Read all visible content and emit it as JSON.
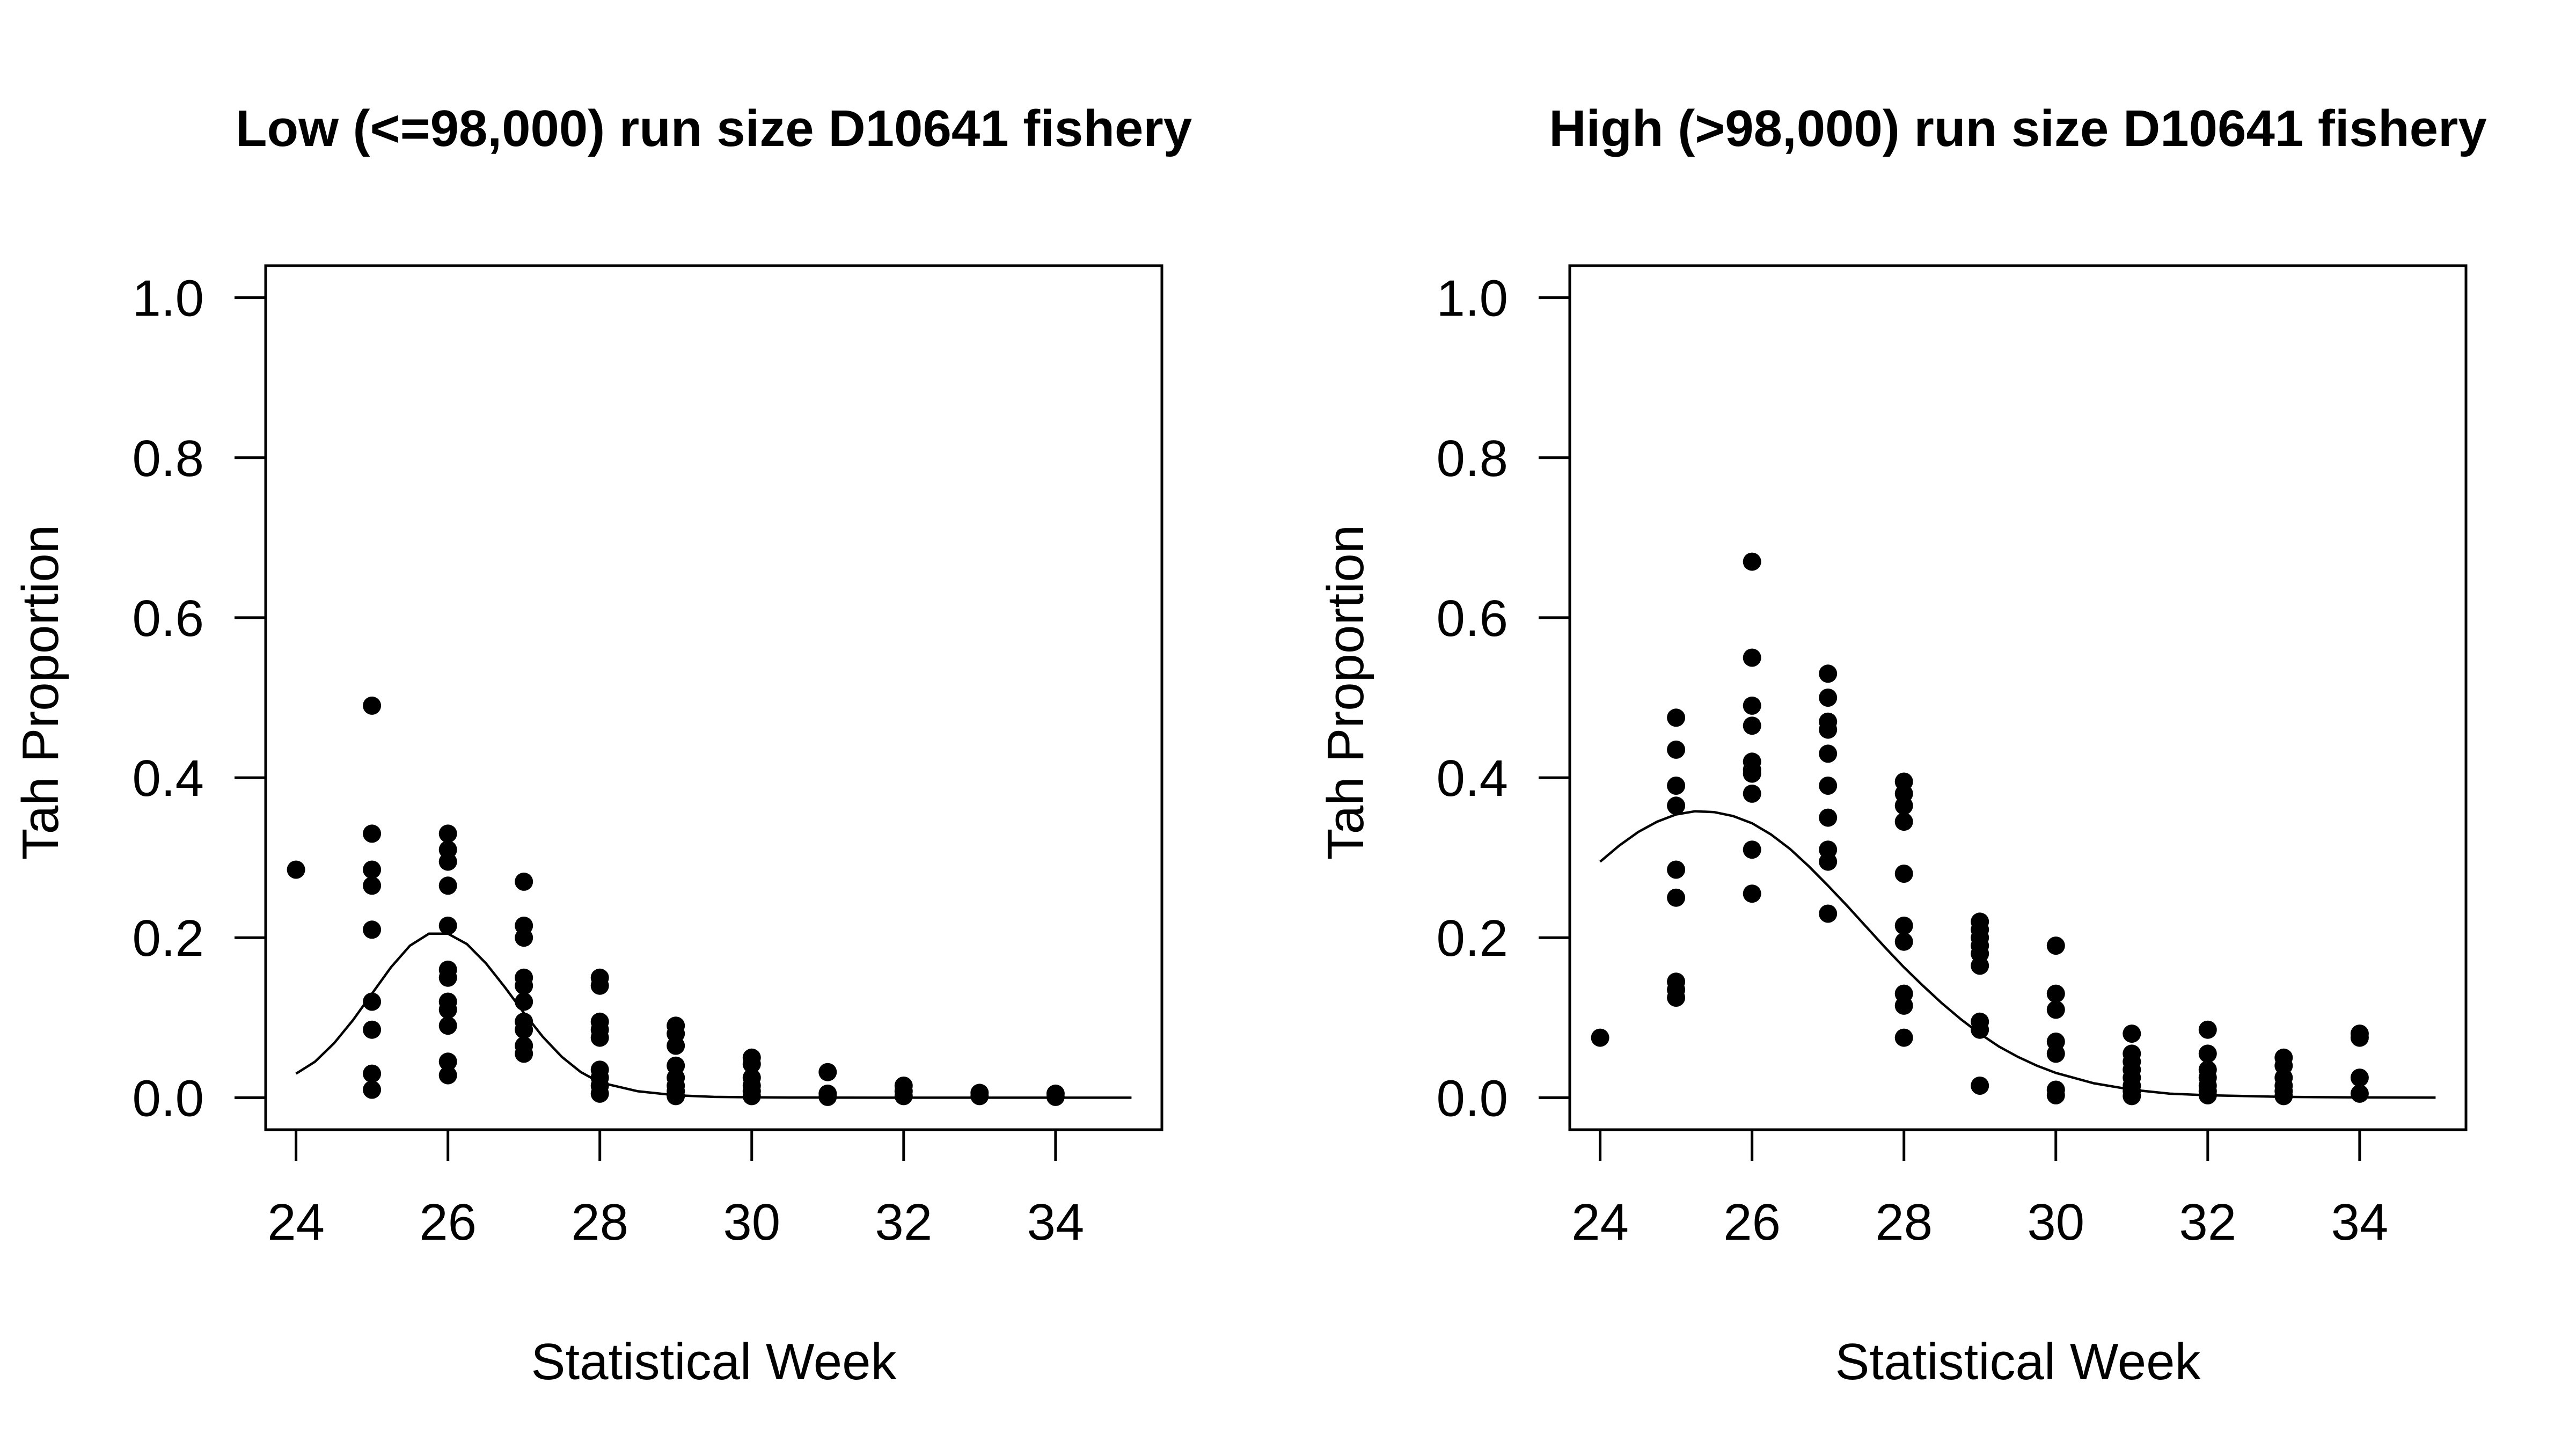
{
  "chart_data": [
    {
      "type": "scatter",
      "title": "Low (<=98,000) run size D10641 fishery",
      "xlabel": "Statistical Week",
      "ylabel": "Tah Proportion",
      "xlim": [
        23.6,
        35.4
      ],
      "ylim": [
        -0.04,
        1.04
      ],
      "xticks": [
        24,
        26,
        28,
        30,
        32,
        34
      ],
      "xtick_labels": [
        "24",
        "26",
        "28",
        "30",
        "32",
        "34"
      ],
      "yticks": [
        0.0,
        0.2,
        0.4,
        0.6,
        0.8,
        1.0
      ],
      "ytick_labels": [
        "0.0",
        "0.2",
        "0.4",
        "0.6",
        "0.8",
        "1.0"
      ],
      "grid": false,
      "series": [
        {
          "type": "scatter",
          "points": [
            [
              24,
              0.285
            ],
            [
              25,
              0.49
            ],
            [
              25,
              0.33
            ],
            [
              25,
              0.285
            ],
            [
              25,
              0.265
            ],
            [
              25,
              0.21
            ],
            [
              25,
              0.12
            ],
            [
              25,
              0.085
            ],
            [
              25,
              0.03
            ],
            [
              25,
              0.01
            ],
            [
              26,
              0.33
            ],
            [
              26,
              0.31
            ],
            [
              26,
              0.295
            ],
            [
              26,
              0.265
            ],
            [
              26,
              0.215
            ],
            [
              26,
              0.16
            ],
            [
              26,
              0.15
            ],
            [
              26,
              0.12
            ],
            [
              26,
              0.11
            ],
            [
              26,
              0.09
            ],
            [
              26,
              0.045
            ],
            [
              26,
              0.028
            ],
            [
              27,
              0.27
            ],
            [
              27,
              0.215
            ],
            [
              27,
              0.2
            ],
            [
              27,
              0.15
            ],
            [
              27,
              0.14
            ],
            [
              27,
              0.12
            ],
            [
              27,
              0.095
            ],
            [
              27,
              0.085
            ],
            [
              27,
              0.065
            ],
            [
              27,
              0.055
            ],
            [
              28,
              0.15
            ],
            [
              28,
              0.14
            ],
            [
              28,
              0.095
            ],
            [
              28,
              0.085
            ],
            [
              28,
              0.075
            ],
            [
              28,
              0.035
            ],
            [
              28,
              0.025
            ],
            [
              28,
              0.015
            ],
            [
              28,
              0.005
            ],
            [
              29,
              0.09
            ],
            [
              29,
              0.08
            ],
            [
              29,
              0.065
            ],
            [
              29,
              0.04
            ],
            [
              29,
              0.025
            ],
            [
              29,
              0.015
            ],
            [
              29,
              0.008
            ],
            [
              29,
              0.002
            ],
            [
              30,
              0.05
            ],
            [
              30,
              0.042
            ],
            [
              30,
              0.025
            ],
            [
              30,
              0.015
            ],
            [
              30,
              0.008
            ],
            [
              30,
              0.002
            ],
            [
              31,
              0.032
            ],
            [
              31,
              0.005
            ],
            [
              31,
              0.001
            ],
            [
              32,
              0.015
            ],
            [
              32,
              0.008
            ],
            [
              32,
              0.002
            ],
            [
              33,
              0.006
            ],
            [
              33,
              0.002
            ],
            [
              34,
              0.005
            ],
            [
              34,
              0.001
            ]
          ]
        },
        {
          "type": "line",
          "x": [
            24,
            24.25,
            24.5,
            24.75,
            25,
            25.25,
            25.5,
            25.75,
            26,
            26.25,
            26.5,
            26.75,
            27,
            27.25,
            27.5,
            27.75,
            28,
            28.5,
            29,
            29.5,
            30,
            30.5,
            31,
            32,
            33,
            34,
            35
          ],
          "y": [
            0.03,
            0.045,
            0.068,
            0.097,
            0.13,
            0.163,
            0.19,
            0.205,
            0.205,
            0.192,
            0.168,
            0.138,
            0.106,
            0.076,
            0.051,
            0.032,
            0.019,
            0.008,
            0.003,
            0.001,
            0.0005,
            0.0002,
            0.0001,
            0.0,
            0.0,
            0.0,
            0.0
          ]
        }
      ]
    },
    {
      "type": "scatter",
      "title": "High (>98,000) run size D10641 fishery",
      "xlabel": "Statistical Week",
      "ylabel": "Tah Proportion",
      "xlim": [
        23.6,
        35.4
      ],
      "ylim": [
        -0.04,
        1.04
      ],
      "xticks": [
        24,
        26,
        28,
        30,
        32,
        34
      ],
      "xtick_labels": [
        "24",
        "26",
        "28",
        "30",
        "32",
        "34"
      ],
      "yticks": [
        0.0,
        0.2,
        0.4,
        0.6,
        0.8,
        1.0
      ],
      "ytick_labels": [
        "0.0",
        "0.2",
        "0.4",
        "0.6",
        "0.8",
        "1.0"
      ],
      "grid": false,
      "series": [
        {
          "type": "scatter",
          "points": [
            [
              24,
              0.075
            ],
            [
              25,
              0.475
            ],
            [
              25,
              0.435
            ],
            [
              25,
              0.39
            ],
            [
              25,
              0.365
            ],
            [
              25,
              0.285
            ],
            [
              25,
              0.25
            ],
            [
              25,
              0.145
            ],
            [
              25,
              0.135
            ],
            [
              25,
              0.125
            ],
            [
              26,
              0.67
            ],
            [
              26,
              0.55
            ],
            [
              26,
              0.49
            ],
            [
              26,
              0.465
            ],
            [
              26,
              0.42
            ],
            [
              26,
              0.41
            ],
            [
              26,
              0.405
            ],
            [
              26,
              0.38
            ],
            [
              26,
              0.31
            ],
            [
              26,
              0.255
            ],
            [
              27,
              0.53
            ],
            [
              27,
              0.5
            ],
            [
              27,
              0.47
            ],
            [
              27,
              0.46
            ],
            [
              27,
              0.43
            ],
            [
              27,
              0.39
            ],
            [
              27,
              0.35
            ],
            [
              27,
              0.31
            ],
            [
              27,
              0.295
            ],
            [
              27,
              0.23
            ],
            [
              28,
              0.395
            ],
            [
              28,
              0.38
            ],
            [
              28,
              0.365
            ],
            [
              28,
              0.345
            ],
            [
              28,
              0.28
            ],
            [
              28,
              0.215
            ],
            [
              28,
              0.195
            ],
            [
              28,
              0.13
            ],
            [
              28,
              0.115
            ],
            [
              28,
              0.075
            ],
            [
              29,
              0.22
            ],
            [
              29,
              0.21
            ],
            [
              29,
              0.2
            ],
            [
              29,
              0.19
            ],
            [
              29,
              0.18
            ],
            [
              29,
              0.165
            ],
            [
              29,
              0.095
            ],
            [
              29,
              0.085
            ],
            [
              29,
              0.015
            ],
            [
              30,
              0.19
            ],
            [
              30,
              0.13
            ],
            [
              30,
              0.11
            ],
            [
              30,
              0.07
            ],
            [
              30,
              0.055
            ],
            [
              30,
              0.01
            ],
            [
              30,
              0.003
            ],
            [
              31,
              0.08
            ],
            [
              31,
              0.055
            ],
            [
              31,
              0.045
            ],
            [
              31,
              0.035
            ],
            [
              31,
              0.025
            ],
            [
              31,
              0.015
            ],
            [
              31,
              0.008
            ],
            [
              31,
              0.002
            ],
            [
              32,
              0.085
            ],
            [
              32,
              0.055
            ],
            [
              32,
              0.035
            ],
            [
              32,
              0.025
            ],
            [
              32,
              0.015
            ],
            [
              32,
              0.008
            ],
            [
              32,
              0.003
            ],
            [
              33,
              0.05
            ],
            [
              33,
              0.04
            ],
            [
              33,
              0.025
            ],
            [
              33,
              0.015
            ],
            [
              33,
              0.008
            ],
            [
              33,
              0.002
            ],
            [
              34,
              0.08
            ],
            [
              34,
              0.075
            ],
            [
              34,
              0.025
            ],
            [
              34,
              0.005
            ]
          ]
        },
        {
          "type": "line",
          "x": [
            24,
            24.25,
            24.5,
            24.75,
            25,
            25.25,
            25.5,
            25.75,
            26,
            26.25,
            26.5,
            26.75,
            27,
            27.25,
            27.5,
            27.75,
            28,
            28.25,
            28.5,
            28.75,
            29,
            29.25,
            29.5,
            29.75,
            30,
            30.5,
            31,
            31.5,
            32,
            33,
            34,
            35
          ],
          "y": [
            0.295,
            0.315,
            0.332,
            0.345,
            0.354,
            0.358,
            0.357,
            0.352,
            0.343,
            0.329,
            0.311,
            0.289,
            0.265,
            0.24,
            0.214,
            0.188,
            0.163,
            0.14,
            0.118,
            0.098,
            0.08,
            0.064,
            0.051,
            0.04,
            0.031,
            0.018,
            0.01,
            0.005,
            0.003,
            0.001,
            0.0003,
            0.0001
          ]
        }
      ]
    }
  ]
}
